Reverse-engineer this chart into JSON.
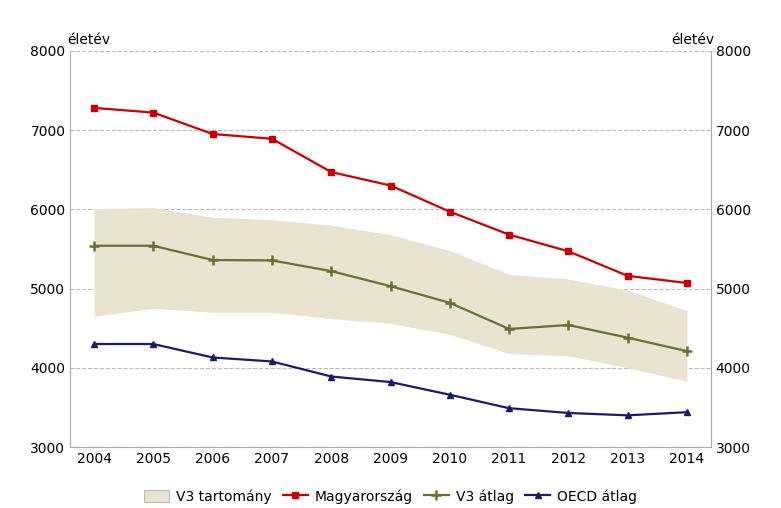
{
  "years": [
    2004,
    2005,
    2006,
    2007,
    2008,
    2009,
    2010,
    2011,
    2012,
    2013,
    2014
  ],
  "magyarorszag": [
    7280,
    7220,
    6950,
    6890,
    6470,
    6300,
    5970,
    5680,
    5470,
    5160,
    5070
  ],
  "v3_atlag": [
    5540,
    5540,
    5360,
    5355,
    5220,
    5030,
    4820,
    4490,
    4540,
    4380,
    4210
  ],
  "v3_upper": [
    6010,
    6020,
    5900,
    5870,
    5800,
    5680,
    5480,
    5180,
    5120,
    4980,
    4720
  ],
  "v3_lower": [
    4650,
    4750,
    4700,
    4700,
    4620,
    4560,
    4420,
    4180,
    4150,
    4000,
    3830
  ],
  "oecd_atlag": [
    4300,
    4300,
    4130,
    4080,
    3890,
    3820,
    3660,
    3490,
    3430,
    3400,
    3440
  ],
  "ylabel_text": "életév",
  "ylim": [
    3000,
    8000
  ],
  "yticks": [
    3000,
    4000,
    5000,
    6000,
    7000,
    8000
  ],
  "legend_labels": [
    "V3 tartomány",
    "Magyarország",
    "V3 átlag",
    "OECD átlag"
  ],
  "color_magyarorszag": "#cc0000",
  "color_v3_atlag": "#6e6e2e",
  "color_oecd_atlag": "#1a1a6e",
  "color_v3_fill": "#e8e4d0",
  "background_color": "#ffffff",
  "grid_color": "#bbbbbb",
  "tick_fontsize": 10,
  "legend_fontsize": 10
}
